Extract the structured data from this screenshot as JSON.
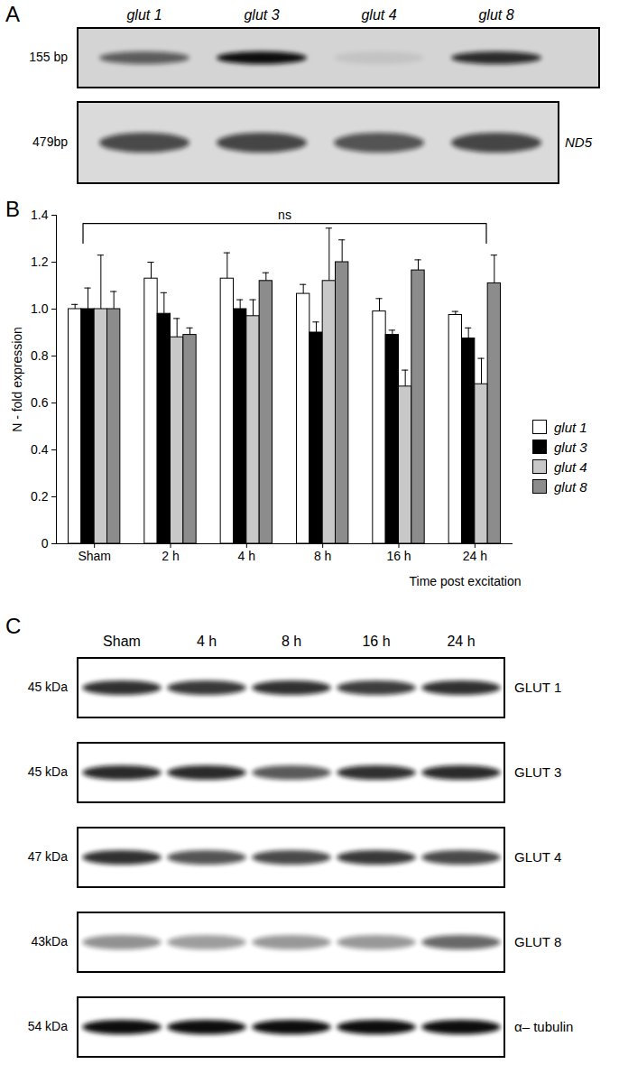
{
  "panel_labels": [
    "A",
    "B",
    "C"
  ],
  "gel": {
    "lanes": [
      "glut 1",
      "glut 3",
      "glut 4",
      "glut 8"
    ],
    "rows": [
      {
        "size": "155 bp",
        "intensities": [
          0.6,
          1.0,
          0.08,
          0.85
        ]
      },
      {
        "size": "479bp",
        "name": "ND5",
        "intensities": [
          0.7,
          0.72,
          0.65,
          0.72
        ]
      }
    ]
  },
  "chart_data": {
    "type": "bar",
    "categories": [
      "Sham",
      "2 h",
      "4 h",
      "8 h",
      "16 h",
      "24 h"
    ],
    "x_label": "Time post excitation",
    "y_label": "N - fold expression",
    "ylim": [
      0,
      1.4
    ],
    "yticks": [
      0,
      0.2,
      0.4,
      0.6,
      0.8,
      {
        "value": 1,
        "label": "1.0"
      },
      1.2,
      1.4
    ],
    "legend": "right",
    "annotations": [
      {
        "text": "ns",
        "from": "Sham",
        "to": "24 h"
      }
    ],
    "series": [
      {
        "name": "glut 1",
        "color": "#ffffff",
        "values": [
          1.0,
          1.13,
          1.13,
          1.065,
          0.99,
          0.975
        ],
        "errors": [
          0.02,
          0.07,
          0.11,
          0.04,
          0.055,
          0.015
        ]
      },
      {
        "name": "glut 3",
        "color": "#000000",
        "values": [
          1.0,
          0.98,
          1.0,
          0.9,
          0.89,
          0.875
        ],
        "errors": [
          0.09,
          0.09,
          0.04,
          0.045,
          0.02,
          0.045
        ]
      },
      {
        "name": "glut 4",
        "color": "#c8c8c8",
        "values": [
          1.0,
          0.88,
          0.97,
          1.12,
          0.67,
          0.68
        ],
        "errors": [
          0.23,
          0.08,
          0.07,
          0.225,
          0.07,
          0.11
        ]
      },
      {
        "name": "glut 8",
        "color": "#8c8c8c",
        "values": [
          1.0,
          0.89,
          1.12,
          1.2,
          1.165,
          1.11
        ],
        "errors": [
          0.075,
          0.03,
          0.035,
          0.095,
          0.045,
          0.12
        ]
      }
    ]
  },
  "blot": {
    "lanes": [
      "Sham",
      "4 h",
      "8 h",
      "16 h",
      "24 h"
    ],
    "rows": [
      {
        "size": "45 kDa",
        "name": "GLUT 1",
        "intensities": [
          0.85,
          0.82,
          0.85,
          0.8,
          0.85
        ]
      },
      {
        "size": "45 kDa",
        "name": "GLUT 3",
        "intensities": [
          0.88,
          0.88,
          0.68,
          0.85,
          0.88
        ]
      },
      {
        "size": "47 kDa",
        "name": "GLUT 4",
        "intensities": [
          0.85,
          0.7,
          0.75,
          0.82,
          0.75
        ]
      },
      {
        "size": "43kDa",
        "name": "GLUT 8",
        "intensities": [
          0.45,
          0.4,
          0.42,
          0.42,
          0.62
        ]
      },
      {
        "size": "54 kDa",
        "name": "α– tubulin",
        "intensities": [
          1.0,
          1.0,
          1.0,
          1.0,
          1.0
        ]
      }
    ]
  }
}
